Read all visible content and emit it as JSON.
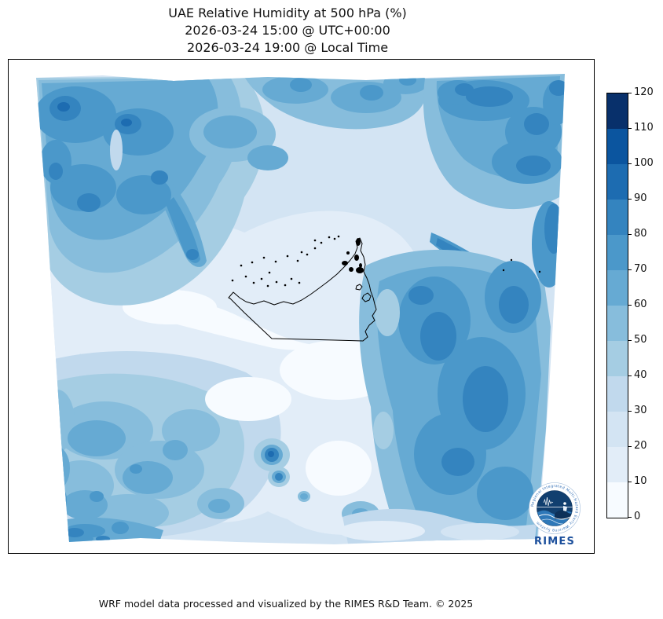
{
  "title": {
    "line1": "UAE Relative Humidity at 500 hPa (%)",
    "line2": "2026-03-24 15:00 @ UTC+00:00",
    "line3": "2026-03-24 19:00 @ Local Time"
  },
  "footer": "WRF model data processed and visualized by the RIMES R&D Team. © 2025",
  "logo": {
    "name": "RIMES",
    "ring_text": "Regional Integrated Multi-Hazard Early Warning System",
    "text_color": "#1b4f9c"
  },
  "colorbar": {
    "min": 0,
    "max": 120,
    "ticks": [
      0,
      10,
      20,
      30,
      40,
      50,
      60,
      70,
      80,
      90,
      100,
      110,
      120
    ],
    "colors": [
      "#f7fbff",
      "#e2edf8",
      "#d3e4f3",
      "#c1d9ed",
      "#a5cde3",
      "#87bddc",
      "#66aad3",
      "#4b98ca",
      "#3484bf",
      "#1d6cb1",
      "#0b559f",
      "#08306b"
    ]
  },
  "map": {
    "coastline_color": "#000000",
    "overlay": "United Arab Emirates coastline, islands and land borders"
  },
  "chart_data": {
    "type": "heatmap",
    "title": "UAE Relative Humidity at 500 hPa (%)",
    "subtitle_utc": "2026-03-24 15:00 @ UTC+00:00",
    "subtitle_local": "2026-03-24 19:00 @ Local Time",
    "variable": "Relative Humidity",
    "pressure_level": "500 hPa",
    "units": "%",
    "model": "WRF",
    "colormap": "Blues, 12 discrete filled-contour bands",
    "contour_levels": [
      0,
      10,
      20,
      30,
      40,
      50,
      60,
      70,
      80,
      90,
      100,
      110,
      120
    ],
    "band_colors": [
      "#f7fbff",
      "#e2edf8",
      "#d3e4f3",
      "#c1d9ed",
      "#a5cde3",
      "#87bddc",
      "#66aad3",
      "#4b98ca",
      "#3484bf",
      "#1d6cb1",
      "#0b559f",
      "#08306b"
    ],
    "legend_position": "right vertical colorbar, ticks every 10 from 0 to 120",
    "grid": false,
    "overlay": "UAE coastline and borders drawn in thin black lines near map center",
    "approx_field_values": [
      {
        "region": "northwest corner of domain",
        "rh_percent": "60-90"
      },
      {
        "region": "northern top edge band",
        "rh_percent": "50-80"
      },
      {
        "region": "northeast corner",
        "rh_percent": "60-90"
      },
      {
        "region": "dark tongue descending from northwest toward center",
        "rh_percent": "70-90"
      },
      {
        "region": "center of domain around UAE coast and Gulf",
        "rh_percent": "0-30"
      },
      {
        "region": "large east / southeast mass (Oman mountains)",
        "rh_percent": "50-90"
      },
      {
        "region": "southwest quadrant blobs",
        "rh_percent": "30-70"
      },
      {
        "region": "two isolated spots south of UAE",
        "rh_percent": "80-100"
      },
      {
        "region": "bottom edge center and bottom-right corner",
        "rh_percent": "0-30"
      }
    ]
  }
}
